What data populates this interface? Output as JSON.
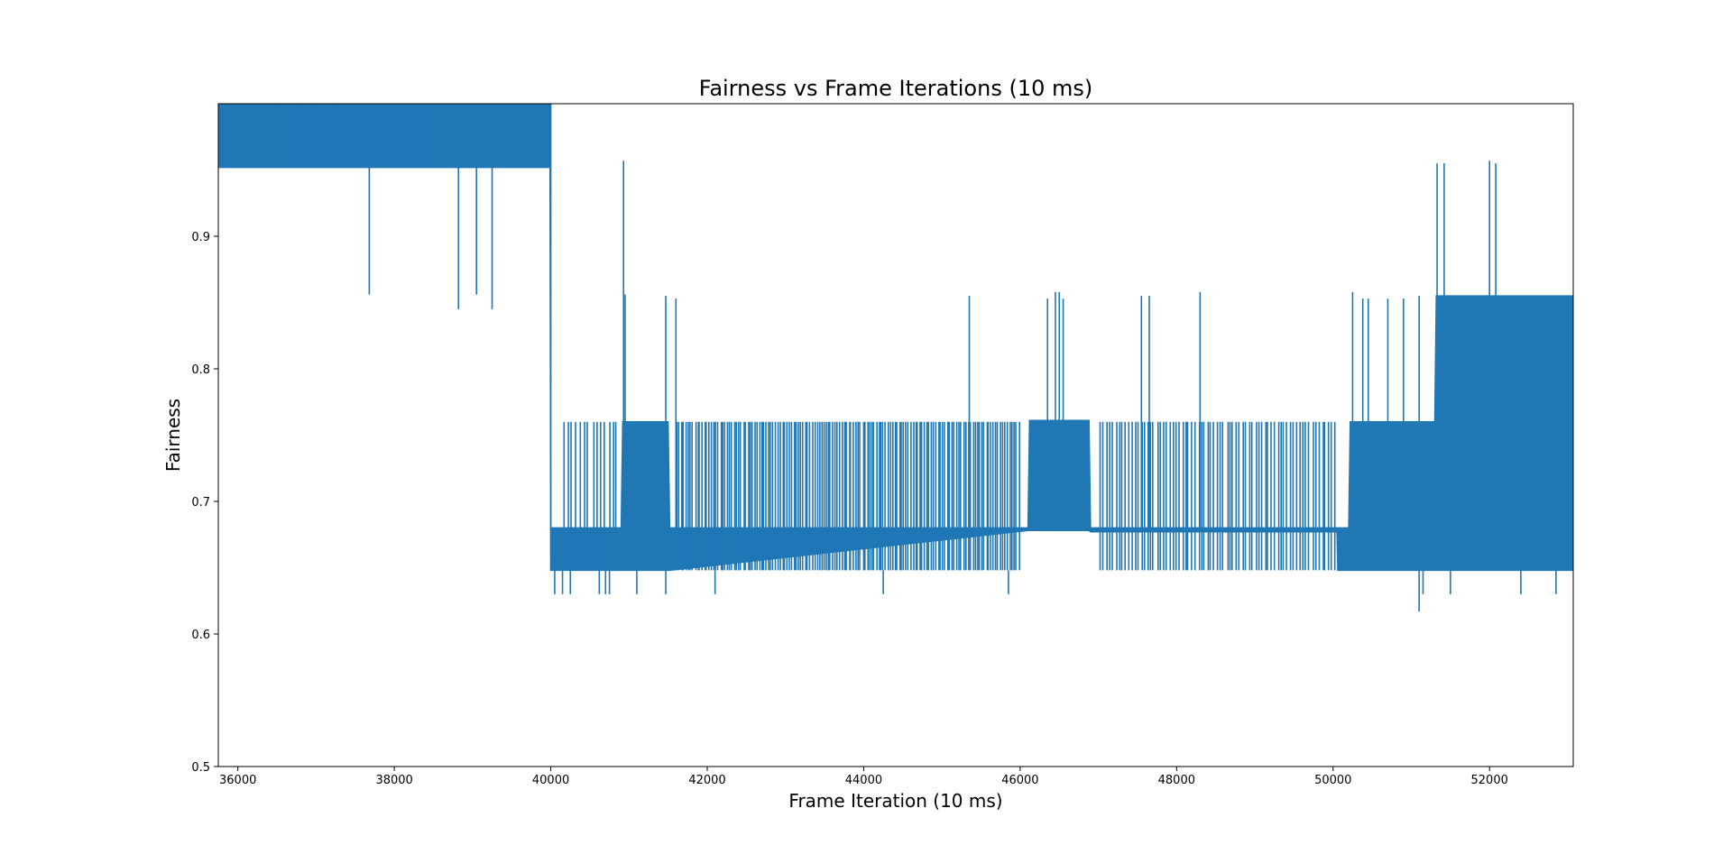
{
  "chart_data": {
    "type": "line",
    "title": "Fairness vs Frame Iterations (10 ms)",
    "xlabel": "Frame Iteration (10 ms)",
    "ylabel": "Fairness",
    "xlim": [
      35750,
      53070
    ],
    "ylim": [
      0.5,
      1.0
    ],
    "xticks": [
      36000,
      38000,
      40000,
      42000,
      44000,
      46000,
      48000,
      50000,
      52000
    ],
    "xtick_labels": [
      "36000",
      "38000",
      "40000",
      "42000",
      "44000",
      "46000",
      "48000",
      "50000",
      "52000"
    ],
    "yticks": [
      0.5,
      0.6,
      0.7,
      0.8,
      0.9
    ],
    "ytick_labels": [
      "0.5",
      "0.6",
      "0.7",
      "0.8",
      "0.9"
    ],
    "grid": false,
    "color": "#1f77b4",
    "series": [
      {
        "envelope": [
          {
            "x": 35750,
            "lo": 0.952,
            "hi": 1.0
          },
          {
            "x": 36550,
            "lo": 0.952,
            "hi": 1.0
          },
          {
            "x": 37000,
            "lo": 0.952,
            "hi": 1.0
          },
          {
            "x": 37700,
            "lo": 0.952,
            "hi": 1.0
          },
          {
            "x": 38600,
            "lo": 0.952,
            "hi": 1.0
          },
          {
            "x": 39990,
            "lo": 0.952,
            "hi": 1.0
          },
          {
            "x": 40000,
            "lo": 0.648,
            "hi": 0.68
          },
          {
            "x": 40900,
            "lo": 0.648,
            "hi": 0.68
          },
          {
            "x": 40920,
            "lo": 0.648,
            "hi": 0.76
          },
          {
            "x": 41500,
            "lo": 0.648,
            "hi": 0.76
          },
          {
            "x": 41520,
            "lo": 0.648,
            "hi": 0.68
          },
          {
            "x": 46100,
            "lo": 0.678,
            "hi": 0.68
          },
          {
            "x": 46120,
            "lo": 0.678,
            "hi": 0.761
          },
          {
            "x": 46880,
            "lo": 0.678,
            "hi": 0.761
          },
          {
            "x": 46900,
            "lo": 0.677,
            "hi": 0.68
          },
          {
            "x": 50050,
            "lo": 0.677,
            "hi": 0.68
          },
          {
            "x": 50060,
            "lo": 0.648,
            "hi": 0.68
          },
          {
            "x": 50200,
            "lo": 0.648,
            "hi": 0.68
          },
          {
            "x": 50220,
            "lo": 0.648,
            "hi": 0.76
          },
          {
            "x": 51300,
            "lo": 0.648,
            "hi": 0.76
          },
          {
            "x": 51320,
            "lo": 0.648,
            "hi": 0.855
          },
          {
            "x": 53070,
            "lo": 0.648,
            "hi": 0.855
          }
        ],
        "low_values": [
          {
            "x": 37680,
            "y": 0.856
          },
          {
            "x": 38820,
            "y": 0.845
          },
          {
            "x": 39050,
            "y": 0.856
          },
          {
            "x": 39250,
            "y": 0.845
          },
          {
            "x": 40050,
            "y": 0.63
          },
          {
            "x": 40150,
            "y": 0.63
          },
          {
            "x": 40250,
            "y": 0.63
          },
          {
            "x": 40620,
            "y": 0.63
          },
          {
            "x": 40700,
            "y": 0.63
          },
          {
            "x": 40750,
            "y": 0.63
          },
          {
            "x": 41100,
            "y": 0.63
          },
          {
            "x": 41470,
            "y": 0.63
          },
          {
            "x": 42100,
            "y": 0.63
          },
          {
            "x": 44250,
            "y": 0.63
          },
          {
            "x": 45850,
            "y": 0.63
          },
          {
            "x": 51100,
            "y": 0.617
          },
          {
            "x": 51150,
            "y": 0.63
          },
          {
            "x": 51500,
            "y": 0.63
          },
          {
            "x": 52400,
            "y": 0.63
          },
          {
            "x": 52850,
            "y": 0.63
          }
        ],
        "high_values": [
          {
            "x": 40000,
            "y": 1.0
          },
          {
            "x": 40930,
            "y": 0.957
          },
          {
            "x": 40950,
            "y": 0.856
          },
          {
            "x": 41470,
            "y": 0.855
          },
          {
            "x": 41600,
            "y": 0.853
          },
          {
            "x": 45350,
            "y": 0.855
          },
          {
            "x": 46350,
            "y": 0.853
          },
          {
            "x": 46450,
            "y": 0.858
          },
          {
            "x": 46500,
            "y": 0.858
          },
          {
            "x": 46550,
            "y": 0.853
          },
          {
            "x": 47550,
            "y": 0.855
          },
          {
            "x": 47650,
            "y": 0.855
          },
          {
            "x": 48300,
            "y": 0.858
          },
          {
            "x": 50250,
            "y": 0.858
          },
          {
            "x": 50380,
            "y": 0.853
          },
          {
            "x": 50450,
            "y": 0.853
          },
          {
            "x": 50700,
            "y": 0.853
          },
          {
            "x": 50900,
            "y": 0.853
          },
          {
            "x": 51100,
            "y": 0.855
          },
          {
            "x": 51330,
            "y": 0.955
          },
          {
            "x": 51420,
            "y": 0.955
          },
          {
            "x": 52000,
            "y": 0.957
          },
          {
            "x": 52080,
            "y": 0.955
          }
        ],
        "fine_spikes": [
          {
            "x_from": 40150,
            "x_to": 40880,
            "lo": 0.648,
            "hi": 0.76,
            "count": 14
          },
          {
            "x_from": 41600,
            "x_to": 46000,
            "lo": 0.648,
            "hi": 0.76,
            "count": 150
          },
          {
            "x_from": 47000,
            "x_to": 50050,
            "lo": 0.648,
            "hi": 0.76,
            "count": 75
          },
          {
            "x_from": 36550,
            "x_to": 38600,
            "lo": 0.952,
            "hi": 1.0,
            "count": 40
          }
        ]
      }
    ]
  }
}
